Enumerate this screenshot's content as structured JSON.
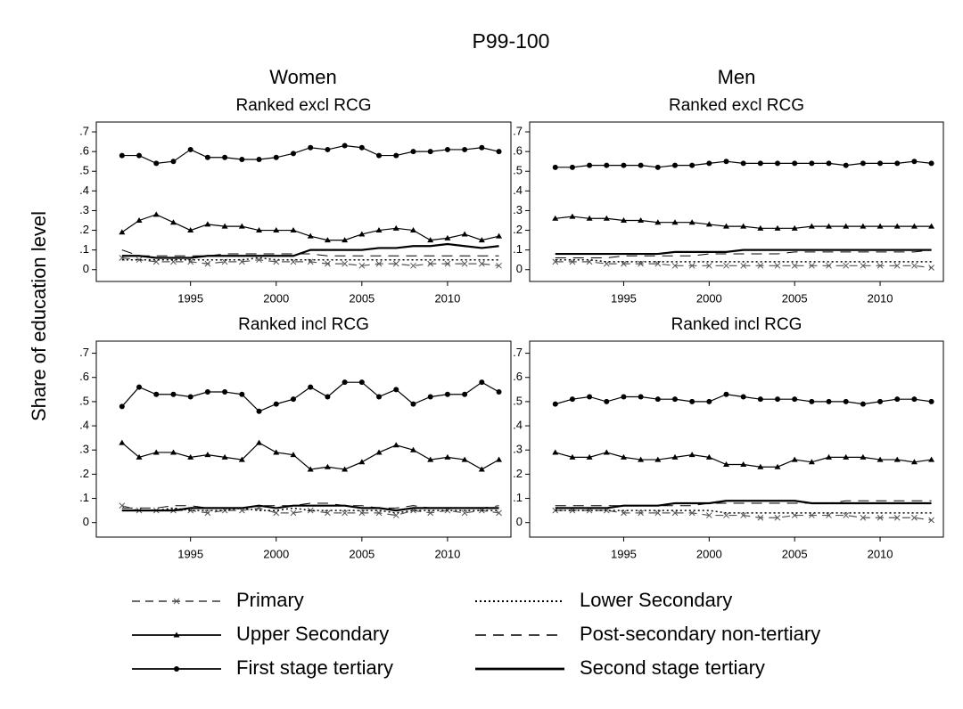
{
  "title": "P99-100",
  "ylabel": "Share of education level",
  "columns": [
    "Women",
    "Men"
  ],
  "chart_data": [
    {
      "type": "line",
      "title": "Ranked excl RCG",
      "x": [
        1991,
        1992,
        1993,
        1994,
        1995,
        1996,
        1997,
        1998,
        1999,
        2000,
        2001,
        2002,
        2003,
        2004,
        2005,
        2006,
        2007,
        2008,
        2009,
        2010,
        2011,
        2012,
        2013
      ],
      "xlim": [
        1989.5,
        2013.7
      ],
      "xticks": [
        1995,
        2000,
        2005,
        2010
      ],
      "ylim": [
        -0.06,
        0.75
      ],
      "yticks": [
        0,
        {
          "value": 0.1,
          "label": ".1"
        },
        {
          "value": 0.2,
          "label": ".2"
        },
        {
          "value": 0.3,
          "label": ".3"
        },
        {
          "value": 0.4,
          "label": ".4"
        },
        {
          "value": 0.5,
          "label": ".5"
        },
        {
          "value": 0.6,
          "label": ".6"
        },
        {
          "value": 0.7,
          "label": ".7"
        }
      ],
      "series": [
        {
          "name": "Primary",
          "color": "#555555",
          "style": "dashed",
          "marker": "x",
          "values": [
            0.06,
            0.05,
            0.04,
            0.04,
            0.04,
            0.03,
            0.04,
            0.04,
            0.05,
            0.04,
            0.04,
            0.04,
            0.03,
            0.03,
            0.02,
            0.03,
            0.03,
            0.02,
            0.03,
            0.03,
            0.03,
            0.03,
            0.02
          ]
        },
        {
          "name": "Lower Secondary",
          "color": "#000000",
          "style": "dotted",
          "marker": "none",
          "values": [
            0.05,
            0.05,
            0.05,
            0.05,
            0.05,
            0.05,
            0.05,
            0.05,
            0.06,
            0.05,
            0.05,
            0.05,
            0.05,
            0.05,
            0.05,
            0.05,
            0.05,
            0.05,
            0.05,
            0.05,
            0.05,
            0.05,
            0.05
          ]
        },
        {
          "name": "Upper Secondary",
          "color": "#000000",
          "style": "solid",
          "marker": "triangle",
          "values": [
            0.19,
            0.25,
            0.28,
            0.24,
            0.2,
            0.23,
            0.22,
            0.22,
            0.2,
            0.2,
            0.2,
            0.17,
            0.15,
            0.15,
            0.18,
            0.2,
            0.21,
            0.2,
            0.15,
            0.16,
            0.18,
            0.15,
            0.17
          ]
        },
        {
          "name": "Post-secondary non-tertiary",
          "color": "#000000",
          "style": "longdash",
          "marker": "none",
          "values": [
            0.1,
            0.07,
            0.07,
            0.07,
            0.07,
            0.07,
            0.08,
            0.08,
            0.08,
            0.08,
            0.08,
            0.08,
            0.07,
            0.07,
            0.07,
            0.07,
            0.07,
            0.07,
            0.07,
            0.07,
            0.07,
            0.07,
            0.07
          ]
        },
        {
          "name": "First stage tertiary",
          "color": "#000000",
          "style": "solid",
          "marker": "dot",
          "values": [
            0.58,
            0.58,
            0.54,
            0.55,
            0.61,
            0.57,
            0.57,
            0.56,
            0.56,
            0.57,
            0.59,
            0.62,
            0.61,
            0.63,
            0.62,
            0.58,
            0.58,
            0.6,
            0.6,
            0.61,
            0.61,
            0.62,
            0.6
          ]
        },
        {
          "name": "Second stage tertiary",
          "color": "#000000",
          "style": "thick",
          "marker": "none",
          "values": [
            0.07,
            0.07,
            0.06,
            0.06,
            0.06,
            0.07,
            0.07,
            0.07,
            0.07,
            0.07,
            0.07,
            0.1,
            0.1,
            0.1,
            0.1,
            0.11,
            0.11,
            0.12,
            0.12,
            0.13,
            0.12,
            0.11,
            0.12
          ]
        }
      ]
    },
    {
      "type": "line",
      "title": "Ranked excl RCG",
      "x": [
        1991,
        1992,
        1993,
        1994,
        1995,
        1996,
        1997,
        1998,
        1999,
        2000,
        2001,
        2002,
        2003,
        2004,
        2005,
        2006,
        2007,
        2008,
        2009,
        2010,
        2011,
        2012,
        2013
      ],
      "xlim": [
        1989.5,
        2013.7
      ],
      "xticks": [
        1995,
        2000,
        2005,
        2010
      ],
      "ylim": [
        -0.06,
        0.75
      ],
      "yticks": [
        0,
        {
          "value": 0.1,
          "label": ".1"
        },
        {
          "value": 0.2,
          "label": ".2"
        },
        {
          "value": 0.3,
          "label": ".3"
        },
        {
          "value": 0.4,
          "label": ".4"
        },
        {
          "value": 0.5,
          "label": ".5"
        },
        {
          "value": 0.6,
          "label": ".6"
        },
        {
          "value": 0.7,
          "label": ".7"
        }
      ],
      "series": [
        {
          "name": "Primary",
          "color": "#555555",
          "style": "dashed",
          "marker": "x",
          "values": [
            0.04,
            0.04,
            0.04,
            0.03,
            0.03,
            0.03,
            0.03,
            0.02,
            0.02,
            0.02,
            0.02,
            0.02,
            0.02,
            0.02,
            0.02,
            0.02,
            0.02,
            0.02,
            0.02,
            0.02,
            0.02,
            0.02,
            0.01
          ]
        },
        {
          "name": "Lower Secondary",
          "color": "#000000",
          "style": "dotted",
          "marker": "none",
          "values": [
            0.05,
            0.05,
            0.05,
            0.04,
            0.04,
            0.04,
            0.04,
            0.04,
            0.04,
            0.04,
            0.04,
            0.04,
            0.04,
            0.04,
            0.04,
            0.04,
            0.04,
            0.04,
            0.04,
            0.04,
            0.04,
            0.04,
            0.04
          ]
        },
        {
          "name": "Upper Secondary",
          "color": "#000000",
          "style": "solid",
          "marker": "triangle",
          "values": [
            0.26,
            0.27,
            0.26,
            0.26,
            0.25,
            0.25,
            0.24,
            0.24,
            0.24,
            0.23,
            0.22,
            0.22,
            0.21,
            0.21,
            0.21,
            0.22,
            0.22,
            0.22,
            0.22,
            0.22,
            0.22,
            0.22,
            0.22
          ]
        },
        {
          "name": "Post-secondary non-tertiary",
          "color": "#000000",
          "style": "longdash",
          "marker": "none",
          "values": [
            0.06,
            0.06,
            0.06,
            0.06,
            0.07,
            0.07,
            0.07,
            0.07,
            0.07,
            0.08,
            0.08,
            0.08,
            0.08,
            0.08,
            0.09,
            0.09,
            0.09,
            0.09,
            0.09,
            0.09,
            0.09,
            0.09,
            0.1
          ]
        },
        {
          "name": "First stage tertiary",
          "color": "#000000",
          "style": "solid",
          "marker": "dot",
          "values": [
            0.52,
            0.52,
            0.53,
            0.53,
            0.53,
            0.53,
            0.52,
            0.53,
            0.53,
            0.54,
            0.55,
            0.54,
            0.54,
            0.54,
            0.54,
            0.54,
            0.54,
            0.53,
            0.54,
            0.54,
            0.54,
            0.55,
            0.54
          ]
        },
        {
          "name": "Second stage tertiary",
          "color": "#000000",
          "style": "thick",
          "marker": "none",
          "values": [
            0.08,
            0.08,
            0.08,
            0.08,
            0.08,
            0.08,
            0.08,
            0.09,
            0.09,
            0.09,
            0.09,
            0.1,
            0.1,
            0.1,
            0.1,
            0.1,
            0.1,
            0.1,
            0.1,
            0.1,
            0.1,
            0.1,
            0.1
          ]
        }
      ]
    },
    {
      "type": "line",
      "title": "Ranked incl RCG",
      "x": [
        1991,
        1992,
        1993,
        1994,
        1995,
        1996,
        1997,
        1998,
        1999,
        2000,
        2001,
        2002,
        2003,
        2004,
        2005,
        2006,
        2007,
        2008,
        2009,
        2010,
        2011,
        2012,
        2013
      ],
      "xlim": [
        1989.5,
        2013.7
      ],
      "xticks": [
        1995,
        2000,
        2005,
        2010
      ],
      "ylim": [
        -0.06,
        0.75
      ],
      "yticks": [
        0,
        {
          "value": 0.1,
          "label": ".1"
        },
        {
          "value": 0.2,
          "label": ".2"
        },
        {
          "value": 0.3,
          "label": ".3"
        },
        {
          "value": 0.4,
          "label": ".4"
        },
        {
          "value": 0.5,
          "label": ".5"
        },
        {
          "value": 0.6,
          "label": ".6"
        },
        {
          "value": 0.7,
          "label": ".7"
        }
      ],
      "series": [
        {
          "name": "Primary",
          "color": "#555555",
          "style": "dashed",
          "marker": "x",
          "values": [
            0.07,
            0.05,
            0.05,
            0.05,
            0.05,
            0.04,
            0.05,
            0.05,
            0.06,
            0.04,
            0.04,
            0.05,
            0.04,
            0.04,
            0.04,
            0.04,
            0.03,
            0.05,
            0.04,
            0.05,
            0.04,
            0.05,
            0.04
          ]
        },
        {
          "name": "Lower Secondary",
          "color": "#000000",
          "style": "dotted",
          "marker": "none",
          "values": [
            0.05,
            0.05,
            0.05,
            0.06,
            0.05,
            0.05,
            0.05,
            0.06,
            0.05,
            0.05,
            0.06,
            0.05,
            0.05,
            0.05,
            0.05,
            0.05,
            0.04,
            0.05,
            0.05,
            0.05,
            0.05,
            0.05,
            0.05
          ]
        },
        {
          "name": "Upper Secondary",
          "color": "#000000",
          "style": "solid",
          "marker": "triangle",
          "values": [
            0.33,
            0.27,
            0.29,
            0.29,
            0.27,
            0.28,
            0.27,
            0.26,
            0.33,
            0.29,
            0.28,
            0.22,
            0.23,
            0.22,
            0.25,
            0.29,
            0.32,
            0.3,
            0.26,
            0.27,
            0.26,
            0.22,
            0.26
          ]
        },
        {
          "name": "Post-secondary non-tertiary",
          "color": "#000000",
          "style": "longdash",
          "marker": "none",
          "values": [
            0.06,
            0.06,
            0.06,
            0.07,
            0.07,
            0.06,
            0.06,
            0.06,
            0.07,
            0.07,
            0.07,
            0.08,
            0.08,
            0.07,
            0.07,
            0.06,
            0.06,
            0.07,
            0.06,
            0.06,
            0.06,
            0.06,
            0.07
          ]
        },
        {
          "name": "First stage tertiary",
          "color": "#000000",
          "style": "solid",
          "marker": "dot",
          "values": [
            0.48,
            0.56,
            0.53,
            0.53,
            0.52,
            0.54,
            0.54,
            0.53,
            0.46,
            0.49,
            0.51,
            0.56,
            0.52,
            0.58,
            0.58,
            0.52,
            0.55,
            0.49,
            0.52,
            0.53,
            0.53,
            0.58,
            0.54
          ]
        },
        {
          "name": "Second stage tertiary",
          "color": "#000000",
          "style": "thick",
          "marker": "none",
          "values": [
            0.05,
            0.05,
            0.05,
            0.05,
            0.06,
            0.06,
            0.06,
            0.06,
            0.07,
            0.06,
            0.07,
            0.07,
            0.07,
            0.07,
            0.06,
            0.06,
            0.05,
            0.06,
            0.06,
            0.06,
            0.06,
            0.06,
            0.06
          ]
        }
      ]
    },
    {
      "type": "line",
      "title": "Ranked incl RCG",
      "x": [
        1991,
        1992,
        1993,
        1994,
        1995,
        1996,
        1997,
        1998,
        1999,
        2000,
        2001,
        2002,
        2003,
        2004,
        2005,
        2006,
        2007,
        2008,
        2009,
        2010,
        2011,
        2012,
        2013
      ],
      "xlim": [
        1989.5,
        2013.7
      ],
      "xticks": [
        1995,
        2000,
        2005,
        2010
      ],
      "ylim": [
        -0.06,
        0.75
      ],
      "yticks": [
        0,
        {
          "value": 0.1,
          "label": ".1"
        },
        {
          "value": 0.2,
          "label": ".2"
        },
        {
          "value": 0.3,
          "label": ".3"
        },
        {
          "value": 0.4,
          "label": ".4"
        },
        {
          "value": 0.5,
          "label": ".5"
        },
        {
          "value": 0.6,
          "label": ".6"
        },
        {
          "value": 0.7,
          "label": ".7"
        }
      ],
      "series": [
        {
          "name": "Primary",
          "color": "#555555",
          "style": "dashed",
          "marker": "x",
          "values": [
            0.05,
            0.05,
            0.05,
            0.05,
            0.04,
            0.04,
            0.04,
            0.04,
            0.04,
            0.03,
            0.03,
            0.03,
            0.02,
            0.02,
            0.03,
            0.03,
            0.03,
            0.03,
            0.02,
            0.02,
            0.02,
            0.02,
            0.01
          ]
        },
        {
          "name": "Lower Secondary",
          "color": "#000000",
          "style": "dotted",
          "marker": "none",
          "values": [
            0.05,
            0.05,
            0.05,
            0.05,
            0.05,
            0.05,
            0.05,
            0.05,
            0.05,
            0.05,
            0.04,
            0.04,
            0.04,
            0.04,
            0.04,
            0.04,
            0.04,
            0.04,
            0.04,
            0.04,
            0.04,
            0.04,
            0.04
          ]
        },
        {
          "name": "Upper Secondary",
          "color": "#000000",
          "style": "solid",
          "marker": "triangle",
          "values": [
            0.29,
            0.27,
            0.27,
            0.29,
            0.27,
            0.26,
            0.26,
            0.27,
            0.28,
            0.27,
            0.24,
            0.24,
            0.23,
            0.23,
            0.26,
            0.25,
            0.27,
            0.27,
            0.27,
            0.26,
            0.26,
            0.25,
            0.26
          ]
        },
        {
          "name": "Post-secondary non-tertiary",
          "color": "#000000",
          "style": "longdash",
          "marker": "none",
          "values": [
            0.07,
            0.07,
            0.07,
            0.07,
            0.07,
            0.07,
            0.07,
            0.07,
            0.07,
            0.08,
            0.08,
            0.08,
            0.08,
            0.08,
            0.08,
            0.08,
            0.08,
            0.09,
            0.09,
            0.09,
            0.09,
            0.09,
            0.09
          ]
        },
        {
          "name": "First stage tertiary",
          "color": "#000000",
          "style": "solid",
          "marker": "dot",
          "values": [
            0.49,
            0.51,
            0.52,
            0.5,
            0.52,
            0.52,
            0.51,
            0.51,
            0.5,
            0.5,
            0.53,
            0.52,
            0.51,
            0.51,
            0.51,
            0.5,
            0.5,
            0.5,
            0.49,
            0.5,
            0.51,
            0.51,
            0.5
          ]
        },
        {
          "name": "Second stage tertiary",
          "color": "#000000",
          "style": "thick",
          "marker": "none",
          "values": [
            0.06,
            0.06,
            0.06,
            0.06,
            0.07,
            0.07,
            0.07,
            0.08,
            0.08,
            0.08,
            0.09,
            0.09,
            0.09,
            0.09,
            0.09,
            0.08,
            0.08,
            0.08,
            0.08,
            0.08,
            0.08,
            0.08,
            0.08
          ]
        }
      ]
    }
  ]
}
